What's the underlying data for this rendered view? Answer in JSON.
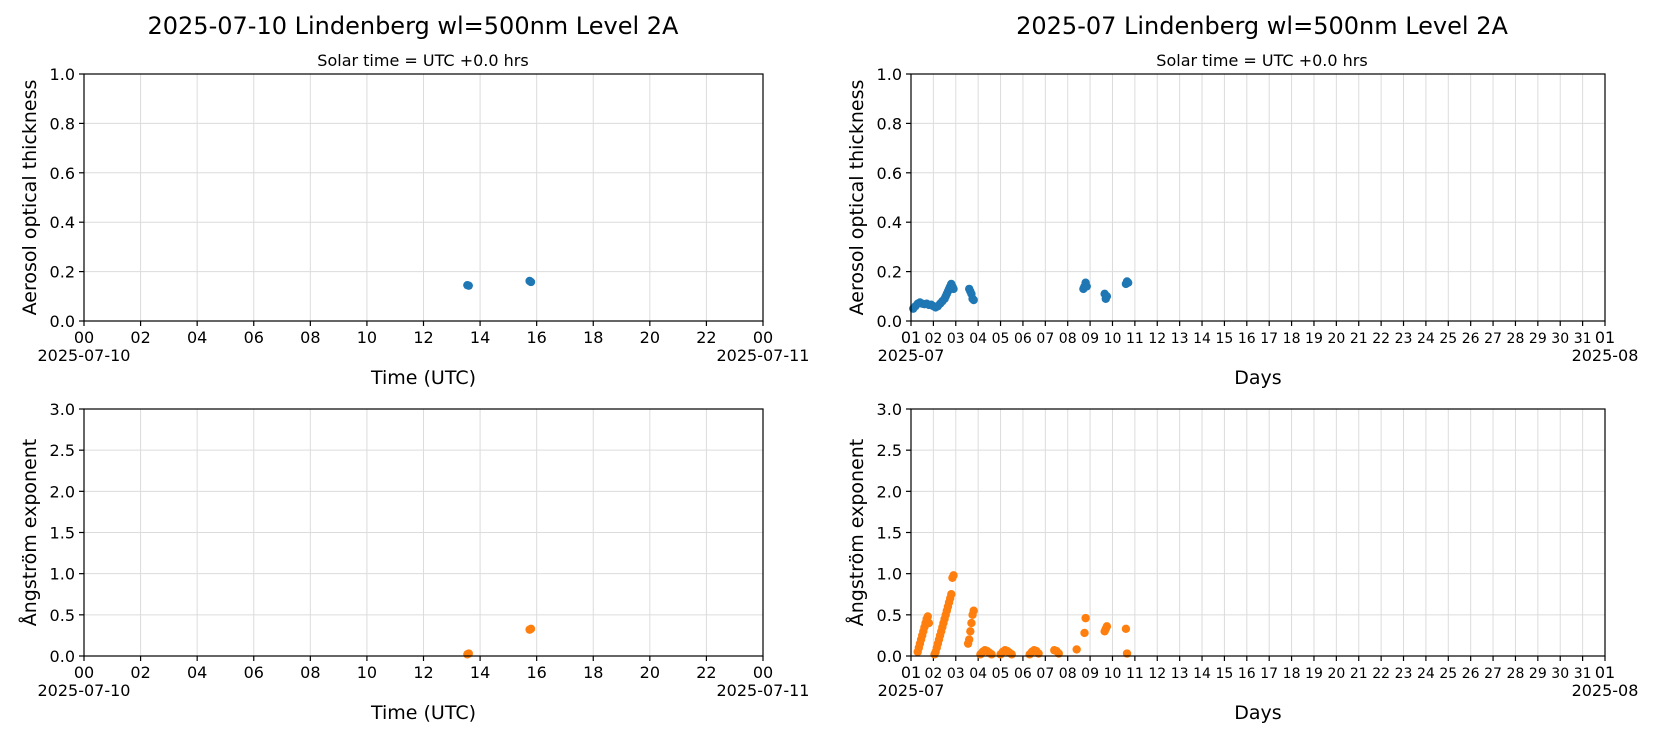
{
  "colors": {
    "aod": "#1f77b4",
    "angstrom": "#ff7f0e",
    "grid": "#dcdcdc"
  },
  "chart_data": [
    {
      "type": "scatter",
      "panel": "top-left",
      "title": "2025-07-10  Lindenberg  wl=500nm  Level 2A",
      "subtitle": "Solar time = UTC +0.0 hrs",
      "xlabel": "Time (UTC)",
      "ylabel": "Aerosol optical thickness",
      "xlim": [
        0,
        24
      ],
      "ylim": [
        0,
        1.0
      ],
      "grid": true,
      "x_ticks": [
        "00",
        "02",
        "04",
        "06",
        "08",
        "10",
        "12",
        "14",
        "16",
        "18",
        "20",
        "22",
        "00"
      ],
      "y_ticks": [
        "0.0",
        "0.2",
        "0.4",
        "0.6",
        "0.8",
        "1.0"
      ],
      "date_left": "2025-07-10",
      "date_right": "2025-07-11",
      "series": [
        {
          "x_unit": "hours UTC",
          "x": [
            13.55,
            13.6,
            15.75,
            15.8
          ],
          "y": [
            0.145,
            0.143,
            0.162,
            0.158
          ]
        }
      ]
    },
    {
      "type": "scatter",
      "panel": "top-right",
      "title": "2025-07  Lindenberg  wl=500nm  Level 2A",
      "subtitle": "Solar time = UTC +0.0 hrs",
      "xlabel": "Days",
      "ylabel": "Aerosol optical thickness",
      "xlim": [
        1,
        32
      ],
      "ylim": [
        0,
        1.0
      ],
      "grid": true,
      "x_ticks": [
        "01",
        "02",
        "03",
        "04",
        "05",
        "06",
        "07",
        "08",
        "09",
        "10",
        "11",
        "12",
        "13",
        "14",
        "15",
        "16",
        "17",
        "18",
        "19",
        "20",
        "21",
        "22",
        "23",
        "24",
        "25",
        "26",
        "27",
        "28",
        "29",
        "30",
        "31",
        "01"
      ],
      "y_ticks": [
        "0.0",
        "0.2",
        "0.4",
        "0.6",
        "0.8",
        "1.0"
      ],
      "date_left": "2025-07",
      "date_right": "2025-08",
      "series": [
        {
          "x_unit": "day of month",
          "x": [
            1.1,
            1.2,
            1.3,
            1.4,
            1.5,
            1.6,
            1.7,
            1.8,
            1.9,
            2.0,
            2.1,
            2.2,
            2.3,
            2.4,
            2.5,
            2.55,
            2.6,
            2.65,
            2.7,
            2.75,
            2.8,
            2.85,
            2.9,
            3.6,
            3.65,
            3.7,
            3.75,
            3.8,
            8.7,
            8.75,
            8.8,
            8.85,
            9.65,
            9.7,
            9.75,
            10.6,
            10.65,
            10.7
          ],
          "y": [
            0.05,
            0.06,
            0.07,
            0.075,
            0.07,
            0.068,
            0.07,
            0.065,
            0.066,
            0.06,
            0.055,
            0.06,
            0.07,
            0.08,
            0.09,
            0.1,
            0.11,
            0.12,
            0.13,
            0.14,
            0.15,
            0.14,
            0.13,
            0.13,
            0.12,
            0.11,
            0.09,
            0.085,
            0.13,
            0.14,
            0.155,
            0.14,
            0.11,
            0.09,
            0.1,
            0.15,
            0.16,
            0.155
          ]
        }
      ]
    },
    {
      "type": "scatter",
      "panel": "bottom-left",
      "xlabel": "Time (UTC)",
      "ylabel": "Ångström exponent",
      "xlim": [
        0,
        24
      ],
      "ylim": [
        0,
        3.0
      ],
      "grid": true,
      "x_ticks": [
        "00",
        "02",
        "04",
        "06",
        "08",
        "10",
        "12",
        "14",
        "16",
        "18",
        "20",
        "22",
        "00"
      ],
      "y_ticks": [
        "0.0",
        "0.5",
        "1.0",
        "1.5",
        "2.0",
        "2.5",
        "3.0"
      ],
      "date_left": "2025-07-10",
      "date_right": "2025-07-11",
      "series": [
        {
          "x_unit": "hours UTC",
          "x": [
            13.55,
            13.6,
            15.75,
            15.8
          ],
          "y": [
            0.02,
            0.03,
            0.32,
            0.33
          ]
        }
      ]
    },
    {
      "type": "scatter",
      "panel": "bottom-right",
      "xlabel": "Days",
      "ylabel": "Ångström exponent",
      "xlim": [
        1,
        32
      ],
      "ylim": [
        0,
        3.0
      ],
      "grid": true,
      "x_ticks": [
        "01",
        "02",
        "03",
        "04",
        "05",
        "06",
        "07",
        "08",
        "09",
        "10",
        "11",
        "12",
        "13",
        "14",
        "15",
        "16",
        "17",
        "18",
        "19",
        "20",
        "21",
        "22",
        "23",
        "24",
        "25",
        "26",
        "27",
        "28",
        "29",
        "30",
        "31",
        "01"
      ],
      "y_ticks": [
        "0.0",
        "0.5",
        "1.0",
        "1.5",
        "2.0",
        "2.5",
        "3.0"
      ],
      "date_left": "2025-07",
      "date_right": "2025-08",
      "series": [
        {
          "x_unit": "day of month",
          "x": [
            1.3,
            1.35,
            1.4,
            1.45,
            1.5,
            1.55,
            1.6,
            1.65,
            1.7,
            1.75,
            1.8,
            2.05,
            2.1,
            2.15,
            2.2,
            2.25,
            2.3,
            2.35,
            2.4,
            2.45,
            2.5,
            2.55,
            2.6,
            2.65,
            2.7,
            2.75,
            2.8,
            2.85,
            2.9,
            3.55,
            3.6,
            3.65,
            3.7,
            3.75,
            3.8,
            4.1,
            4.2,
            4.3,
            4.4,
            4.5,
            4.6,
            5.0,
            5.1,
            5.2,
            5.3,
            5.4,
            5.5,
            6.3,
            6.4,
            6.5,
            6.6,
            6.7,
            7.4,
            7.5,
            7.6,
            8.4,
            8.75,
            8.8,
            9.65,
            9.7,
            9.75,
            10.6,
            10.65
          ],
          "y": [
            0.05,
            0.1,
            0.15,
            0.2,
            0.25,
            0.3,
            0.35,
            0.4,
            0.45,
            0.48,
            0.4,
            0.02,
            0.05,
            0.1,
            0.15,
            0.2,
            0.25,
            0.3,
            0.35,
            0.4,
            0.45,
            0.5,
            0.55,
            0.6,
            0.65,
            0.7,
            0.75,
            0.95,
            0.98,
            0.15,
            0.2,
            0.3,
            0.4,
            0.5,
            0.55,
            0.02,
            0.05,
            0.07,
            0.06,
            0.04,
            0.02,
            0.02,
            0.05,
            0.07,
            0.06,
            0.04,
            0.02,
            0.02,
            0.05,
            0.07,
            0.06,
            0.03,
            0.07,
            0.06,
            0.03,
            0.08,
            0.28,
            0.46,
            0.3,
            0.33,
            0.36,
            0.33,
            0.03
          ]
        }
      ]
    }
  ]
}
